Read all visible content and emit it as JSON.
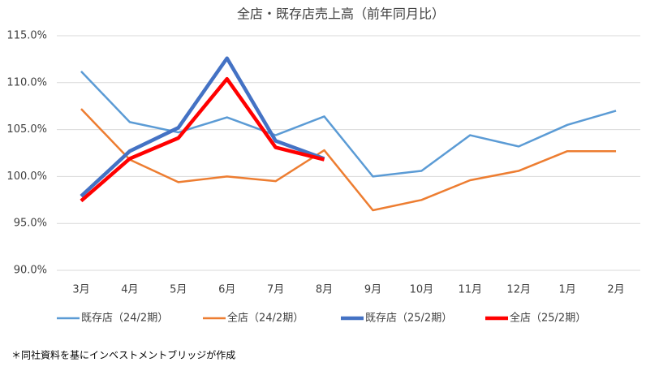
{
  "chart_data": {
    "type": "line",
    "title": "全店・既存店売上高（前年同月比）",
    "categories": [
      "3月",
      "4月",
      "5月",
      "6月",
      "7月",
      "8月",
      "9月",
      "10月",
      "11月",
      "12月",
      "1月",
      "2月"
    ],
    "series": [
      {
        "name": "既存店（24/2期）",
        "color": "#5b9bd5",
        "width": 2.5,
        "values": [
          111.2,
          105.8,
          104.7,
          106.3,
          104.4,
          106.4,
          100.0,
          100.6,
          104.4,
          103.2,
          105.5,
          107.0
        ]
      },
      {
        "name": "全店（24/2期）",
        "color": "#ed7d31",
        "width": 2.5,
        "values": [
          107.2,
          101.8,
          99.4,
          100.0,
          99.5,
          102.8,
          96.4,
          97.5,
          99.6,
          100.6,
          102.7,
          102.7
        ]
      },
      {
        "name": "既存店（25/2期）",
        "color": "#4472c4",
        "width": 4.5,
        "values": [
          97.9,
          102.7,
          105.2,
          112.6,
          103.8,
          101.9,
          null,
          null,
          null,
          null,
          null,
          null
        ]
      },
      {
        "name": "全店（25/2期）",
        "color": "#ff0000",
        "width": 4.5,
        "values": [
          97.4,
          101.9,
          104.1,
          110.4,
          103.1,
          101.8,
          null,
          null,
          null,
          null,
          null,
          null
        ]
      }
    ],
    "ylim": [
      90,
      115
    ],
    "yticks": [
      {
        "value": 90,
        "label": "90.0%"
      },
      {
        "value": 95,
        "label": "95.0%"
      },
      {
        "value": 100,
        "label": "100.0%"
      },
      {
        "value": 105,
        "label": "105.0%"
      },
      {
        "value": 110,
        "label": "110.0%"
      },
      {
        "value": 115,
        "label": "115.0%"
      }
    ],
    "grid": true,
    "legend": "bottom",
    "note": "＊同社資料を基にインベストメントブリッジが作成"
  }
}
